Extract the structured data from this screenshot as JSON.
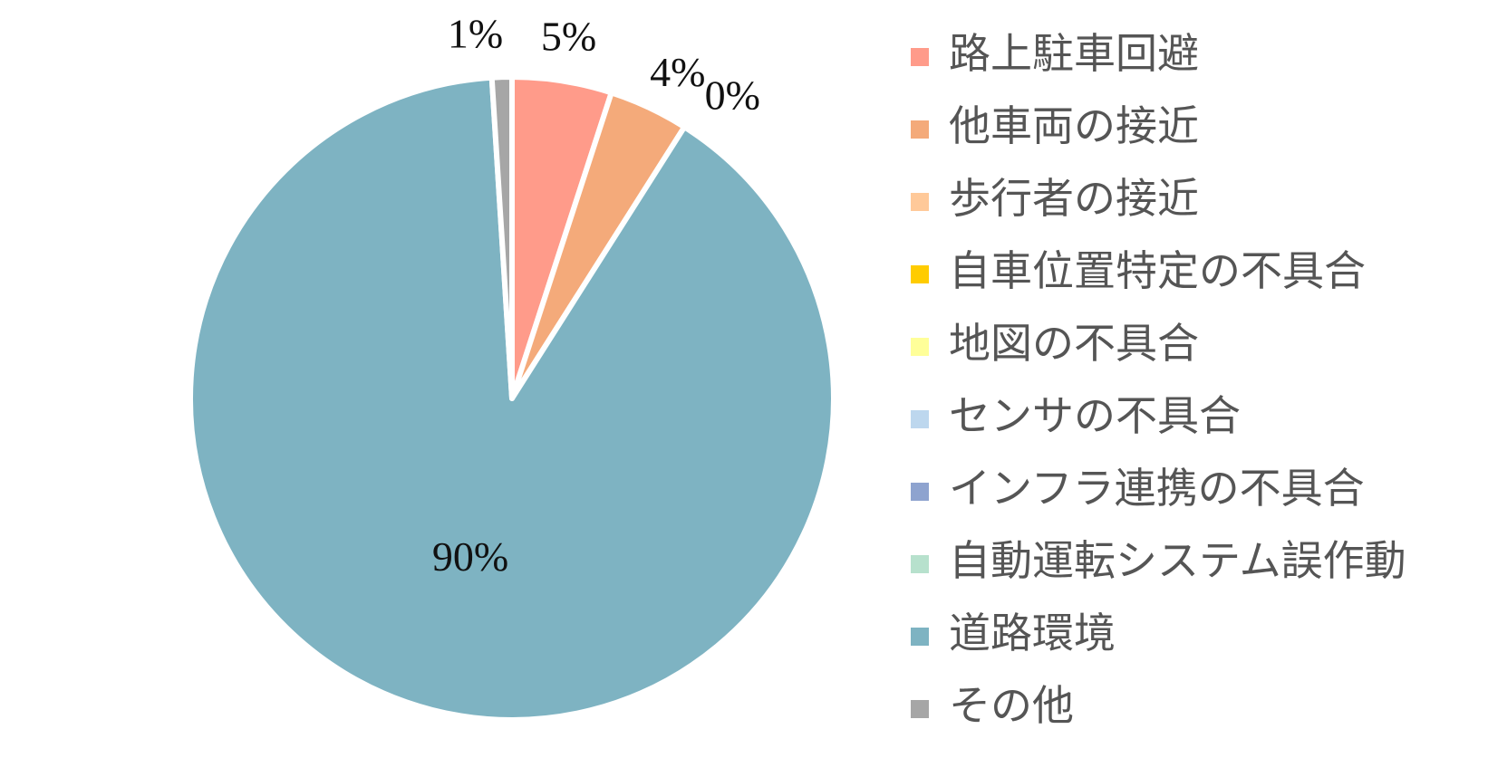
{
  "chart_data": {
    "type": "pie",
    "title": "",
    "legend_position": "right",
    "start_angle": "12 o'clock, clockwise",
    "slices": [
      {
        "name": "路上駐車回避",
        "value": 5,
        "label": "5%",
        "color": "#FF9B8A"
      },
      {
        "name": "他車両の接近",
        "value": 4,
        "label": "4%",
        "color": "#F4AA7A"
      },
      {
        "name": "歩行者の接近",
        "value": 0,
        "label": "0%",
        "color": "#FFC999"
      },
      {
        "name": "自車位置特定の不具合",
        "value": 0,
        "label": "",
        "color": "#FFCC00"
      },
      {
        "name": "地図の不具合",
        "value": 0,
        "label": "",
        "color": "#FFFF99"
      },
      {
        "name": "センサの不具合",
        "value": 0,
        "label": "",
        "color": "#BDD7EE"
      },
      {
        "name": "インフラ連携の不具合",
        "value": 0,
        "label": "",
        "color": "#8EA3CF"
      },
      {
        "name": "自動運転システム誤作動",
        "value": 0,
        "label": "",
        "color": "#B7E1CD"
      },
      {
        "name": "道路環境",
        "value": 90,
        "label": "90%",
        "color": "#7EB3C2"
      },
      {
        "name": "その他",
        "value": 1,
        "label": "1%",
        "color": "#A6A6A6"
      }
    ]
  }
}
